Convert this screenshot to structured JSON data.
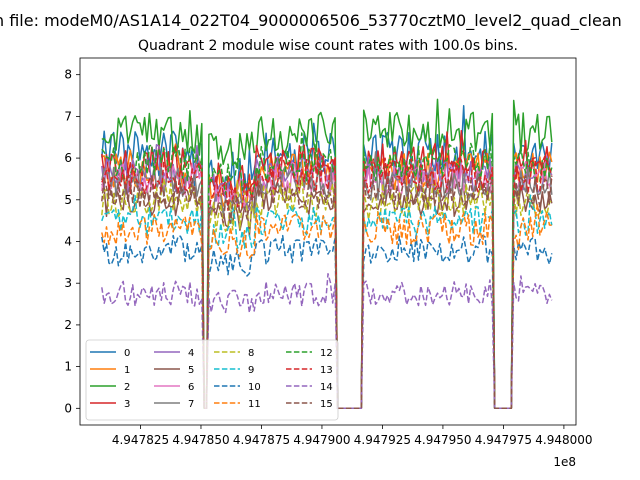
{
  "chart_data": {
    "type": "line",
    "suptitle": "n file: modeM0/AS1A14_022T04_9000006506_53770cztM0_level2_quad_clean",
    "title": "Quadrant 2 module wise count rates with 100.0s bins.",
    "xlabel": "",
    "ylabel": "",
    "x_offset_label": "1e8",
    "xlim": [
      4.9478,
      4.948005
    ],
    "ylim": [
      -0.4,
      8.4
    ],
    "x_ticks": [
      4.947825,
      4.94785,
      4.947875,
      4.9479,
      4.947925,
      4.94795,
      4.947975,
      4.948
    ],
    "x_tick_labels": [
      "4.947825",
      "4.947850",
      "4.947875",
      "4.947900",
      "4.947925",
      "4.947950",
      "4.947975",
      "4.948000"
    ],
    "y_ticks": [
      0,
      1,
      2,
      3,
      4,
      5,
      6,
      7,
      8
    ],
    "y_tick_labels": [
      "0",
      "1",
      "2",
      "3",
      "4",
      "5",
      "6",
      "7",
      "8"
    ],
    "x_range": [
      4.947809,
      4.947995
    ],
    "gaps": [
      [
        4.947851,
        4.947853
      ],
      [
        4.947906,
        4.947917
      ],
      [
        4.947971,
        4.947979
      ]
    ],
    "legend": {
      "position": "lower-left",
      "ncol": 4
    },
    "series": [
      {
        "name": "0",
        "color": "#1f77b4",
        "dash": "solid",
        "level": 6.1,
        "amp": 0.55,
        "seed": 1
      },
      {
        "name": "1",
        "color": "#ff7f0e",
        "dash": "solid",
        "level": 5.7,
        "amp": 0.45,
        "seed": 2
      },
      {
        "name": "2",
        "color": "#2ca02c",
        "dash": "solid",
        "level": 6.6,
        "amp": 0.55,
        "seed": 3
      },
      {
        "name": "3",
        "color": "#d62728",
        "dash": "solid",
        "level": 5.9,
        "amp": 0.45,
        "seed": 4
      },
      {
        "name": "4",
        "color": "#9467bd",
        "dash": "solid",
        "level": 5.6,
        "amp": 0.45,
        "seed": 5
      },
      {
        "name": "5",
        "color": "#8c564b",
        "dash": "solid",
        "level": 5.0,
        "amp": 0.4,
        "seed": 6
      },
      {
        "name": "6",
        "color": "#e377c2",
        "dash": "solid",
        "level": 5.5,
        "amp": 0.4,
        "seed": 7
      },
      {
        "name": "7",
        "color": "#7f7f7f",
        "dash": "solid",
        "level": 5.4,
        "amp": 0.4,
        "seed": 8
      },
      {
        "name": "8",
        "color": "#bcbd22",
        "dash": "dashed",
        "level": 5.0,
        "amp": 0.4,
        "seed": 9
      },
      {
        "name": "9",
        "color": "#17becf",
        "dash": "dashed",
        "level": 4.5,
        "amp": 0.35,
        "seed": 10
      },
      {
        "name": "10",
        "color": "#1f77b4",
        "dash": "dashed",
        "level": 3.8,
        "amp": 0.35,
        "seed": 11
      },
      {
        "name": "11",
        "color": "#ff7f0e",
        "dash": "dashed",
        "level": 4.3,
        "amp": 0.4,
        "seed": 12
      },
      {
        "name": "12",
        "color": "#2ca02c",
        "dash": "dashed",
        "level": 5.9,
        "amp": 0.45,
        "seed": 13
      },
      {
        "name": "13",
        "color": "#d62728",
        "dash": "dashed",
        "level": 5.6,
        "amp": 0.45,
        "seed": 14
      },
      {
        "name": "14",
        "color": "#9467bd",
        "dash": "dashed",
        "level": 2.75,
        "amp": 0.3,
        "seed": 15
      },
      {
        "name": "15",
        "color": "#8c564b",
        "dash": "dashed",
        "level": 5.2,
        "amp": 0.4,
        "seed": 16
      }
    ]
  }
}
